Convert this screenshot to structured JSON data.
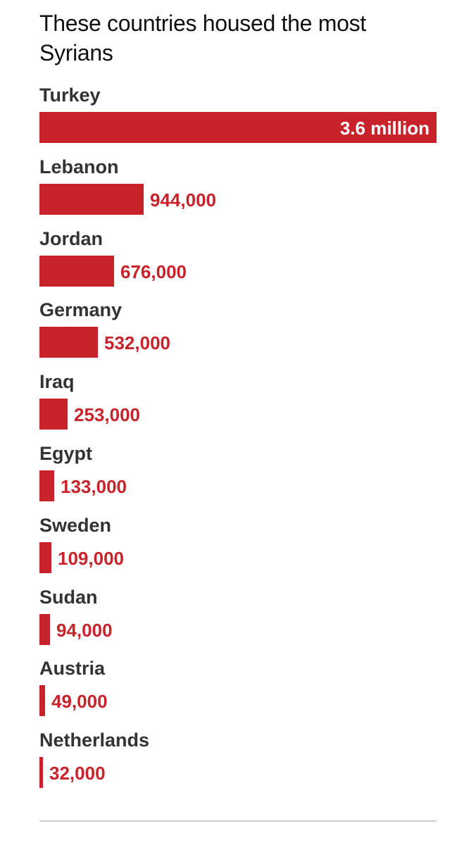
{
  "title": "These countries housed the most Syrians",
  "chart_data": {
    "type": "bar",
    "orientation": "horizontal",
    "title": "These countries housed the most Syrians",
    "categories": [
      "Turkey",
      "Lebanon",
      "Jordan",
      "Germany",
      "Iraq",
      "Egypt",
      "Sweden",
      "Sudan",
      "Austria",
      "Netherlands"
    ],
    "values": [
      3600000,
      944000,
      676000,
      532000,
      253000,
      133000,
      109000,
      94000,
      49000,
      32000
    ],
    "value_labels": [
      "3.6 million",
      "944,000",
      "676,000",
      "532,000",
      "253,000",
      "133,000",
      "109,000",
      "94,000",
      "49,000",
      "32,000"
    ],
    "xlim": [
      0,
      3600000
    ],
    "grid": false,
    "bar_color": "#c8232b",
    "label_color": "#333333"
  }
}
